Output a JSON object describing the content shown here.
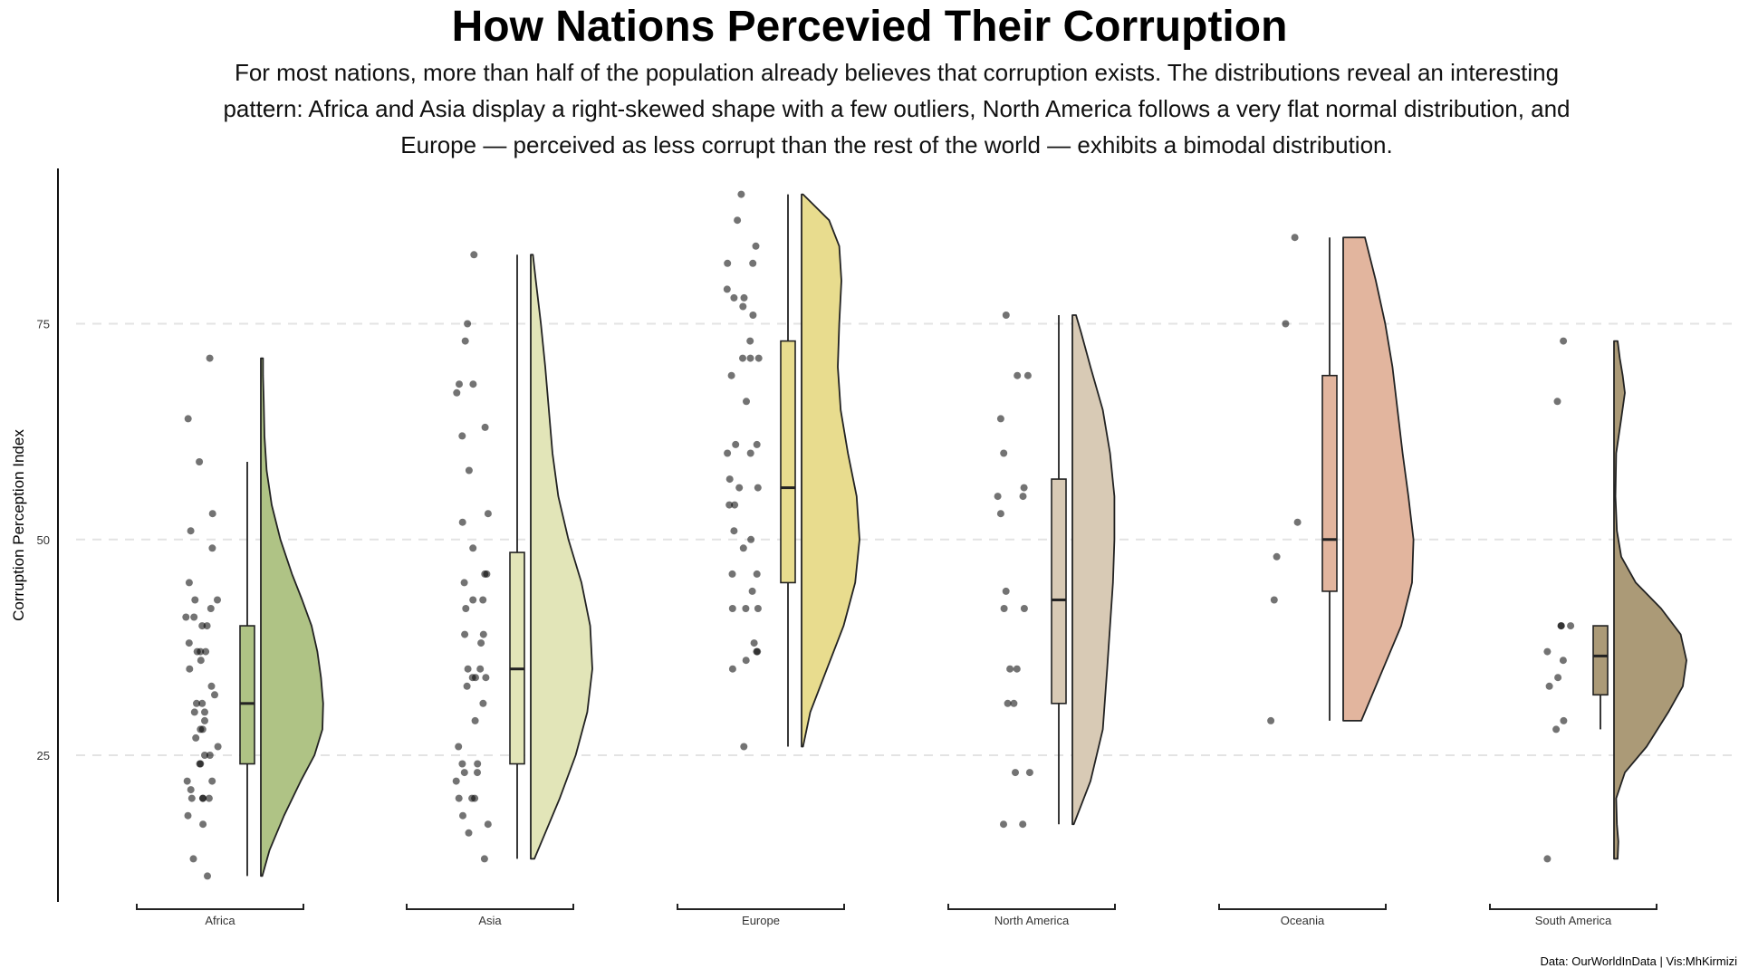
{
  "title": "How Nations Percevied Their Corruption",
  "subtitle": "For most nations, more than half of the population already believes that corruption exists. The distributions reveal an interesting pattern: Africa and Asia display a right-skewed shape with a few outliers, North America follows a very flat normal distribution, and Europe — perceived as less corrupt than the rest of the world — exhibits a bimodal distribution.",
  "caption": "Data: OurWorldInData | Vis:MhKirmizi",
  "chart_data": {
    "type": "raincloud",
    "title": "How Nations Percevied Their Corruption",
    "xlabel": "",
    "ylabel": "Corruption Perception Index",
    "ylim": [
      8,
      93
    ],
    "yticks": [
      25,
      50,
      75
    ],
    "grid": "horizontal dashed",
    "categories": [
      "Africa",
      "Asia",
      "Europe",
      "North America",
      "Oceania",
      "South America"
    ],
    "colors": [
      "#afc385",
      "#e2e5b8",
      "#e8dc8e",
      "#d8cab5",
      "#e2b59e",
      "#ab9a77"
    ],
    "series": [
      {
        "box": {
          "min": 11,
          "q1": 24,
          "median": 31,
          "q3": 40,
          "max": 59
        },
        "density": [
          [
            11,
            0.02
          ],
          [
            14,
            0.12
          ],
          [
            18,
            0.32
          ],
          [
            22,
            0.55
          ],
          [
            25,
            0.74
          ],
          [
            28,
            0.85
          ],
          [
            31,
            0.86
          ],
          [
            34,
            0.83
          ],
          [
            37,
            0.78
          ],
          [
            40,
            0.7
          ],
          [
            43,
            0.57
          ],
          [
            46,
            0.43
          ],
          [
            50,
            0.27
          ],
          [
            54,
            0.15
          ],
          [
            58,
            0.08
          ],
          [
            62,
            0.05
          ],
          [
            66,
            0.04
          ],
          [
            69,
            0.03
          ],
          [
            71,
            0.03
          ]
        ],
        "points": [
          71,
          64,
          59,
          53,
          51,
          49,
          45,
          43,
          43,
          42,
          41,
          41,
          40,
          40,
          38,
          37,
          37,
          37,
          36,
          35,
          33,
          32,
          31,
          31,
          30,
          30,
          29,
          28,
          28,
          27,
          26,
          25,
          25,
          24,
          24,
          22,
          22,
          21,
          20,
          20,
          20,
          20,
          18,
          17,
          13,
          11
        ]
      },
      {
        "box": {
          "min": 13,
          "q1": 24,
          "median": 35,
          "q3": 48.5,
          "max": 83
        },
        "density": [
          [
            13,
            0.05
          ],
          [
            16,
            0.2
          ],
          [
            20,
            0.4
          ],
          [
            25,
            0.62
          ],
          [
            30,
            0.78
          ],
          [
            35,
            0.85
          ],
          [
            40,
            0.82
          ],
          [
            45,
            0.7
          ],
          [
            50,
            0.52
          ],
          [
            55,
            0.38
          ],
          [
            60,
            0.3
          ],
          [
            65,
            0.25
          ],
          [
            70,
            0.2
          ],
          [
            75,
            0.14
          ],
          [
            80,
            0.07
          ],
          [
            83,
            0.03
          ]
        ],
        "points": [
          83,
          75,
          73,
          68,
          68,
          67,
          63,
          62,
          58,
          53,
          52,
          49,
          46,
          46,
          45,
          43,
          43,
          42,
          39,
          39,
          38,
          35,
          35,
          34,
          34,
          34,
          33,
          31,
          29,
          26,
          24,
          24,
          23,
          23,
          22,
          20,
          20,
          20,
          18,
          17,
          16,
          13
        ]
      },
      {
        "box": {
          "min": 26,
          "q1": 45,
          "median": 56,
          "q3": 73,
          "max": 90
        },
        "density": [
          [
            26,
            0.02
          ],
          [
            30,
            0.12
          ],
          [
            35,
            0.35
          ],
          [
            40,
            0.58
          ],
          [
            45,
            0.74
          ],
          [
            50,
            0.8
          ],
          [
            55,
            0.76
          ],
          [
            60,
            0.64
          ],
          [
            65,
            0.54
          ],
          [
            70,
            0.5
          ],
          [
            75,
            0.52
          ],
          [
            80,
            0.55
          ],
          [
            84,
            0.52
          ],
          [
            87,
            0.38
          ],
          [
            89,
            0.14
          ],
          [
            90,
            0.02
          ]
        ],
        "points": [
          90,
          87,
          84,
          82,
          82,
          79,
          78,
          78,
          77,
          76,
          73,
          71,
          71,
          71,
          69,
          66,
          61,
          61,
          60,
          60,
          57,
          56,
          56,
          54,
          54,
          51,
          50,
          49,
          46,
          46,
          44,
          42,
          42,
          42,
          38,
          37,
          37,
          36,
          35,
          26
        ]
      },
      {
        "box": {
          "min": 17,
          "q1": 31,
          "median": 43,
          "q3": 57,
          "max": 76
        },
        "density": [
          [
            17,
            0.02
          ],
          [
            22,
            0.25
          ],
          [
            28,
            0.42
          ],
          [
            35,
            0.48
          ],
          [
            40,
            0.52
          ],
          [
            45,
            0.56
          ],
          [
            50,
            0.58
          ],
          [
            55,
            0.58
          ],
          [
            60,
            0.52
          ],
          [
            65,
            0.42
          ],
          [
            70,
            0.25
          ],
          [
            74,
            0.12
          ],
          [
            76,
            0.05
          ]
        ],
        "points": [
          76,
          69,
          69,
          64,
          60,
          56,
          55,
          55,
          53,
          44,
          42,
          42,
          35,
          35,
          31,
          31,
          23,
          23,
          17,
          17
        ]
      },
      {
        "box": {
          "min": 29,
          "q1": 44,
          "median": 50,
          "q3": 69,
          "max": 85
        },
        "density": [
          [
            29,
            0.25
          ],
          [
            35,
            0.55
          ],
          [
            40,
            0.8
          ],
          [
            45,
            0.95
          ],
          [
            50,
            0.97
          ],
          [
            55,
            0.9
          ],
          [
            60,
            0.82
          ],
          [
            65,
            0.75
          ],
          [
            70,
            0.68
          ],
          [
            75,
            0.58
          ],
          [
            80,
            0.45
          ],
          [
            85,
            0.3
          ]
        ],
        "points": [
          85,
          75,
          52,
          48,
          43,
          29
        ]
      },
      {
        "box": {
          "min": 28,
          "q1": 32,
          "median": 36.5,
          "q3": 40,
          "max": 40
        },
        "density": [
          [
            13,
            0.05
          ],
          [
            15,
            0.06
          ],
          [
            17,
            0.04
          ],
          [
            20,
            0.03
          ],
          [
            23,
            0.15
          ],
          [
            26,
            0.45
          ],
          [
            30,
            0.75
          ],
          [
            33,
            0.95
          ],
          [
            36,
            1.0
          ],
          [
            39,
            0.92
          ],
          [
            42,
            0.65
          ],
          [
            45,
            0.3
          ],
          [
            48,
            0.1
          ],
          [
            51,
            0.04
          ],
          [
            55,
            0.02
          ],
          [
            60,
            0.03
          ],
          [
            64,
            0.1
          ],
          [
            67,
            0.15
          ],
          [
            69,
            0.12
          ],
          [
            71,
            0.08
          ],
          [
            73,
            0.05
          ]
        ],
        "points": [
          73,
          66,
          40,
          40,
          40,
          37,
          36,
          34,
          33,
          29,
          28,
          13
        ]
      }
    ]
  }
}
